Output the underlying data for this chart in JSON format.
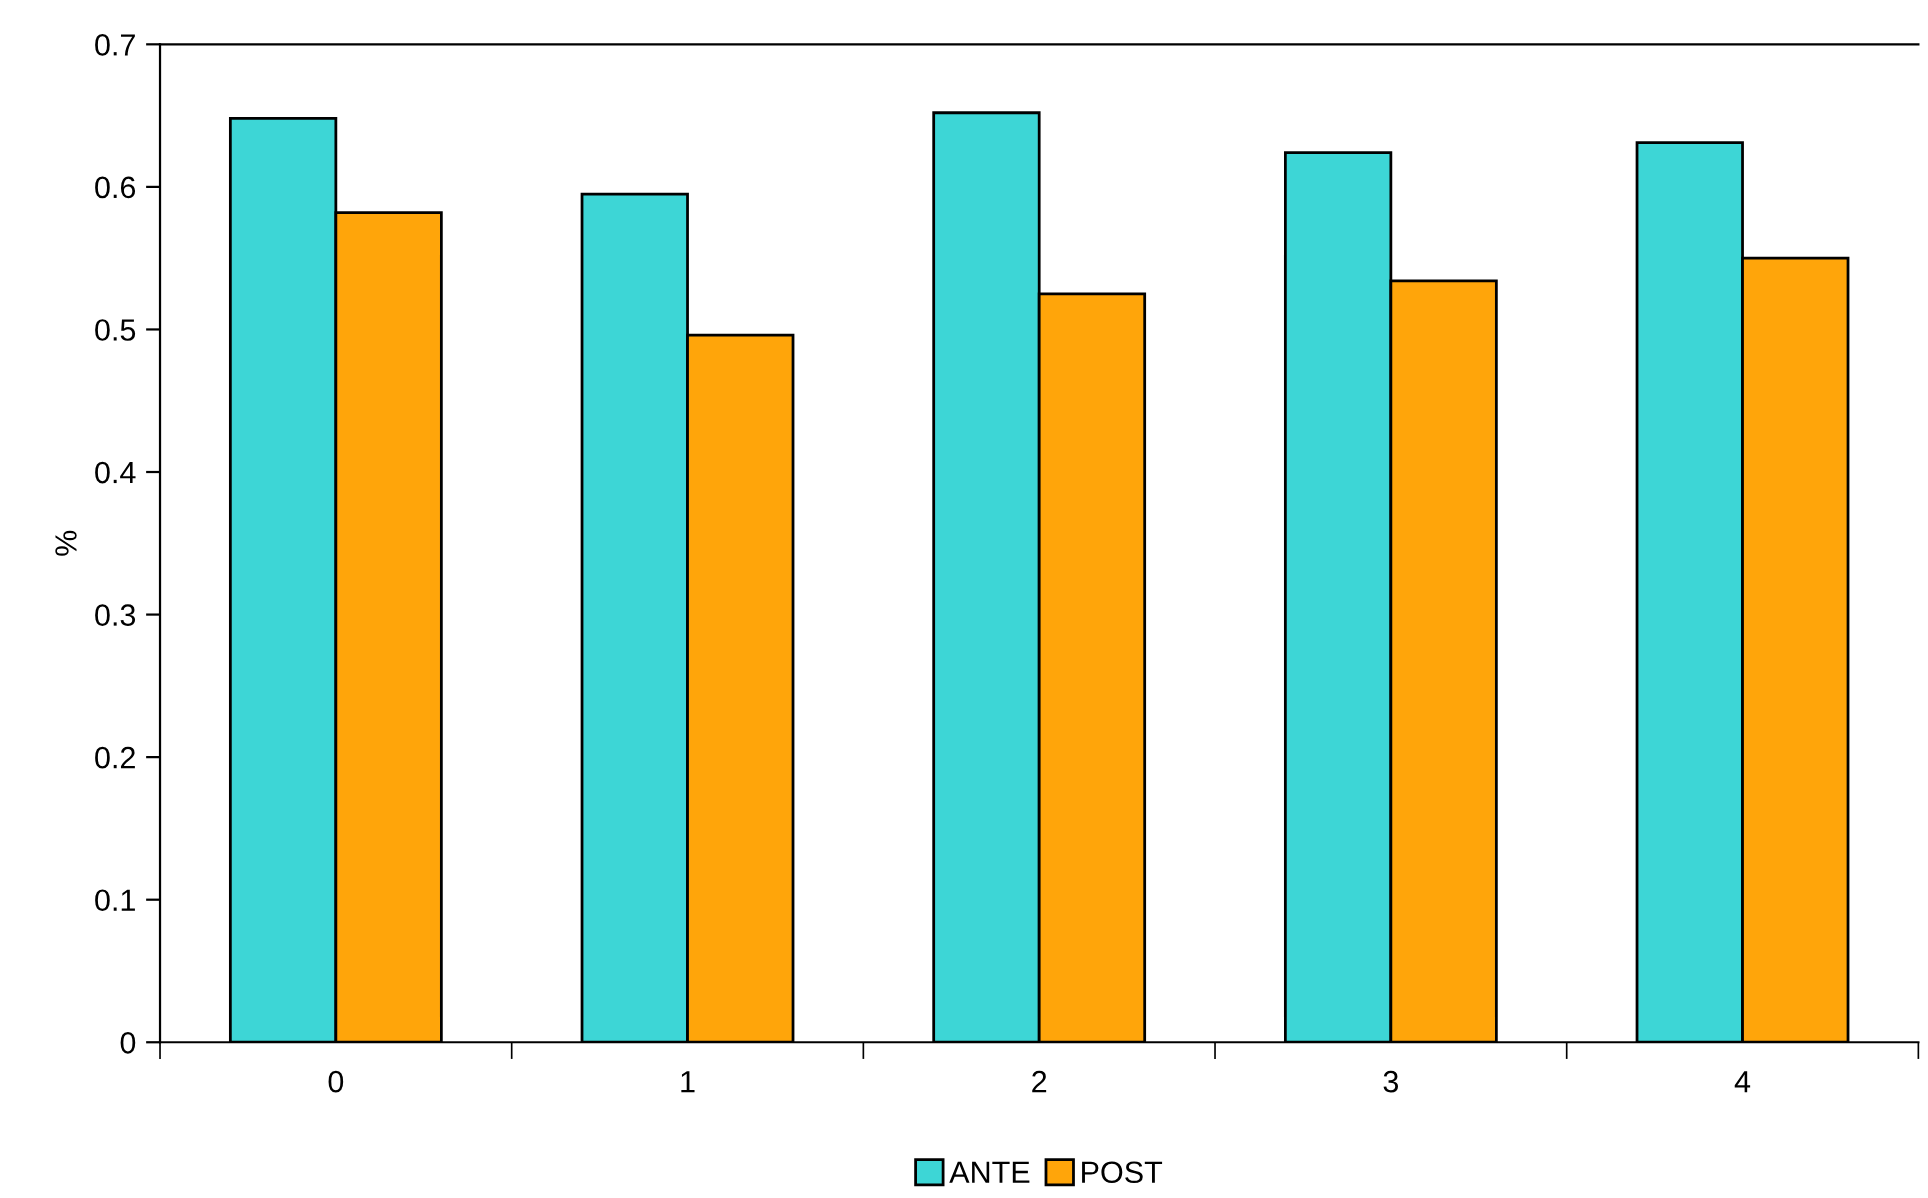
{
  "chart_data": {
    "type": "bar",
    "ylabel": "%",
    "categories": [
      "0",
      "1",
      "2",
      "3",
      "4"
    ],
    "series": [
      {
        "name": "ANTE",
        "color": "#3dd6d6",
        "values": [
          0.648,
          0.595,
          0.652,
          0.624,
          0.631
        ]
      },
      {
        "name": "POST",
        "color": "#ffa50a",
        "values": [
          0.582,
          0.496,
          0.525,
          0.534,
          0.55
        ]
      }
    ],
    "ylim": [
      0,
      0.7
    ],
    "yticks": [
      {
        "value": 0,
        "label": "0"
      },
      0.1,
      0.2,
      0.3,
      0.4,
      0.5,
      0.6,
      0.7
    ],
    "grid": false,
    "legend": "bottom"
  }
}
